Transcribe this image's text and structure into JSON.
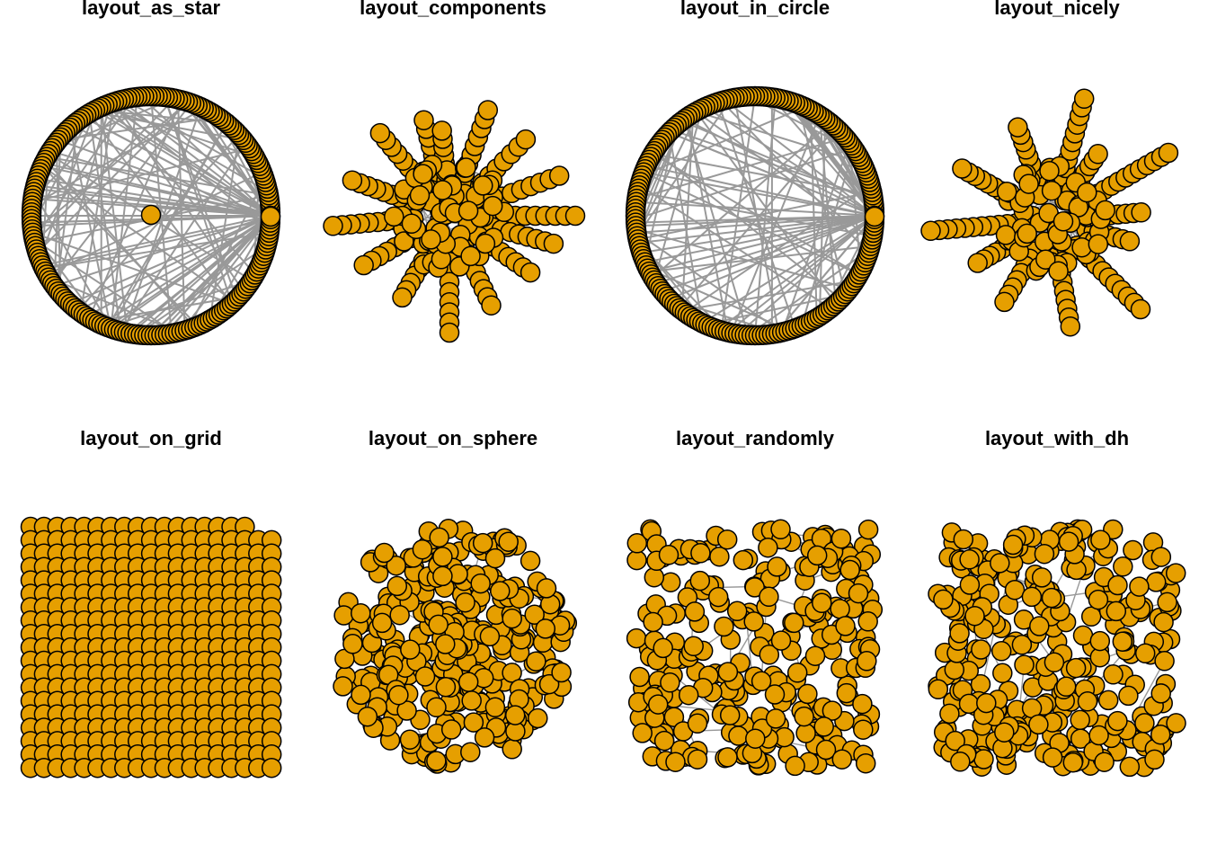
{
  "panels": [
    {
      "title": "layout_as_star",
      "layout": "star"
    },
    {
      "title": "layout_components",
      "layout": "components"
    },
    {
      "title": "layout_in_circle",
      "layout": "circle"
    },
    {
      "title": "layout_nicely",
      "layout": "nicely"
    },
    {
      "title": "layout_on_grid",
      "layout": "grid"
    },
    {
      "title": "layout_on_sphere",
      "layout": "sphere"
    },
    {
      "title": "layout_randomly",
      "layout": "random"
    },
    {
      "title": "layout_with_dh",
      "layout": "dh"
    }
  ],
  "colors": {
    "node_fill": "#E69F00",
    "node_stroke": "#000000",
    "edge": "#999999",
    "background": "#ffffff"
  }
}
